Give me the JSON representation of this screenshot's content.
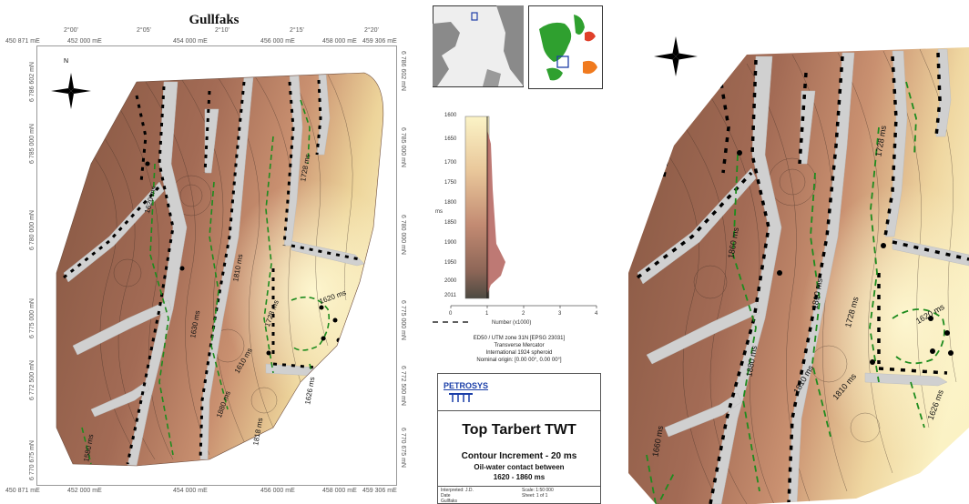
{
  "map_title": "Gullfaks",
  "top_lon_labels": [
    "2°00'",
    "2°05'",
    "2°10'",
    "2°15'",
    "2°20'"
  ],
  "top_east_labels": [
    "450 871 mE",
    "452 000 mE",
    "454 000 mE",
    "456 000 mE",
    "458 000 mE",
    "459 306 mE"
  ],
  "bottom_east_labels": [
    "450 871 mE",
    "452 000 mE",
    "454 000 mE",
    "456 000 mE",
    "458 000 mE",
    "459 306 mE"
  ],
  "left_north_labels": [
    "6 786 602 mN",
    "6 785 000 mN",
    "6 780 000 mN",
    "6 775 000 mN",
    "6 772 500 mN",
    "6 770 675 mN"
  ],
  "right_north_labels": [
    "6 786 602 mN",
    "6 785 000 mN",
    "6 780 000 mN",
    "6 775 000 mN",
    "6 772 500 mN",
    "6 770 675 mN"
  ],
  "north_label": "N",
  "contour_labels": [
    "1580 ms",
    "1620 ms",
    "1630 ms",
    "1728 ms",
    "1810 ms",
    "1610 ms",
    "1880 ms",
    "1860 ms",
    "1626 ms",
    "1818 ms",
    "1728 ms",
    "1620 ms"
  ],
  "right_contour_labels": [
    "1860 ms",
    "1880 ms",
    "1728 ms",
    "1810 ms",
    "1620 ms",
    "1728 ms",
    "1810 ms",
    "1810 ms",
    "1626 ms",
    "1660 ms"
  ],
  "depth_chart": {
    "y_ticks": [
      "1600",
      "1650",
      "1700",
      "1750",
      "1800",
      "1850",
      "1900",
      "1950",
      "2000",
      "2011"
    ],
    "y_label": "ms",
    "x_ticks": [
      "0",
      "1",
      "2",
      "3",
      "4"
    ],
    "x_label": "Number (x1000)"
  },
  "projection_lines": [
    "ED50 / UTM zone 31N [EPSG 23031]",
    "Transverse Mercator",
    "International 1924 spheroid",
    "Nominal origin: [0.00 00°, 0.00 00°]"
  ],
  "logo_text": "PETROSYS",
  "panel_title": "Top Tarbert TWT",
  "panel_subtitle": "Contour Increment - 20 ms",
  "panel_line2": "Oil-water contact between",
  "panel_line3": "1620 - 1860 ms",
  "footer": {
    "left_top": "Interpreted: J.D.",
    "left_bottom": "Date",
    "right_top": "Scale: 1:50 000",
    "right_bottom": "Sheet: 1 of 1",
    "bottom_left": "Gullfaks"
  },
  "colors": {
    "deep": "#7a4f3a",
    "mid": "#c48a6a",
    "shallow": "#fbf0c0",
    "fault": "#d0d0d0",
    "owc": "#1e8c1e"
  }
}
